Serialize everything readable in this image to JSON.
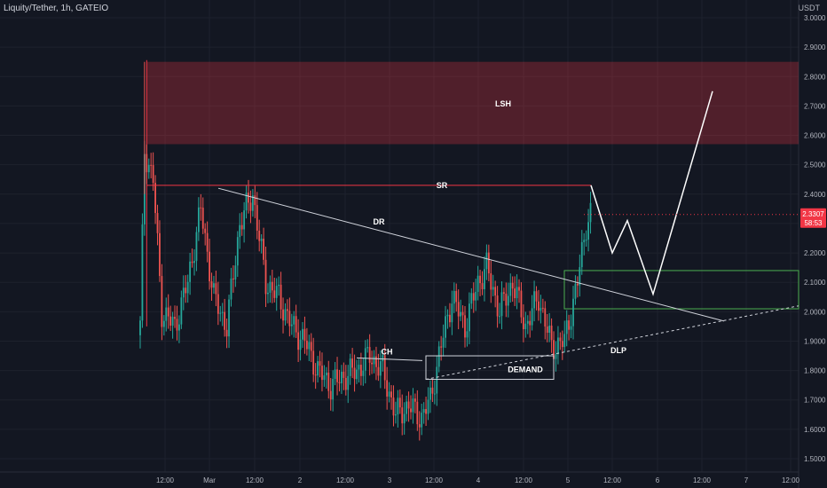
{
  "header": {
    "title": "Liquity/Tether, 1h, GATEIO"
  },
  "chart_data": {
    "type": "candlestick",
    "title": "Liquity/Tether, 1h, GATEIO",
    "ylabel": "USDT",
    "ylim": [
      1.45,
      3.05
    ],
    "y_ticks": [
      "3.0000",
      "2.9000",
      "2.8000",
      "2.7000",
      "2.6000",
      "2.5000",
      "2.4000",
      "2.3000",
      "2.2000",
      "2.1000",
      "2.0000",
      "1.9000",
      "1.8000",
      "1.7000",
      "1.6000",
      "1.5000"
    ],
    "x_ticks": [
      "12:00",
      "Mar",
      "12:00",
      "2",
      "12:00",
      "3",
      "12:00",
      "4",
      "12:00",
      "5",
      "12:00",
      "6",
      "12:00",
      "7",
      "12:00"
    ],
    "last_price": {
      "value": "2.3307",
      "timer": "58:53",
      "color": "#f23645"
    },
    "colors": {
      "up": "#26a69a",
      "down": "#ef5350",
      "background": "#131722",
      "grid": "#1e222d"
    },
    "ohlc_anchors": [
      {
        "t": 0,
        "p": 1.95
      },
      {
        "t": 2,
        "p": 2.55
      },
      {
        "t": 6,
        "p": 2.45
      },
      {
        "t": 10,
        "p": 2.0
      },
      {
        "t": 16,
        "p": 1.95
      },
      {
        "t": 22,
        "p": 2.1
      },
      {
        "t": 28,
        "p": 2.35
      },
      {
        "t": 34,
        "p": 2.05
      },
      {
        "t": 40,
        "p": 1.95
      },
      {
        "t": 46,
        "p": 2.3
      },
      {
        "t": 52,
        "p": 2.4
      },
      {
        "t": 58,
        "p": 2.1
      },
      {
        "t": 64,
        "p": 2.05
      },
      {
        "t": 70,
        "p": 1.95
      },
      {
        "t": 76,
        "p": 1.9
      },
      {
        "t": 82,
        "p": 1.8
      },
      {
        "t": 88,
        "p": 1.75
      },
      {
        "t": 94,
        "p": 1.78
      },
      {
        "t": 100,
        "p": 1.8
      },
      {
        "t": 106,
        "p": 1.85
      },
      {
        "t": 112,
        "p": 1.8
      },
      {
        "t": 118,
        "p": 1.65
      },
      {
        "t": 124,
        "p": 1.68
      },
      {
        "t": 130,
        "p": 1.64
      },
      {
        "t": 134,
        "p": 1.7
      },
      {
        "t": 138,
        "p": 1.85
      },
      {
        "t": 144,
        "p": 2.05
      },
      {
        "t": 150,
        "p": 1.95
      },
      {
        "t": 156,
        "p": 2.1
      },
      {
        "t": 160,
        "p": 2.15
      },
      {
        "t": 166,
        "p": 2.0
      },
      {
        "t": 172,
        "p": 2.1
      },
      {
        "t": 178,
        "p": 1.95
      },
      {
        "t": 184,
        "p": 2.05
      },
      {
        "t": 190,
        "p": 1.88
      },
      {
        "t": 196,
        "p": 1.9
      },
      {
        "t": 202,
        "p": 2.1
      },
      {
        "t": 206,
        "p": 2.3
      },
      {
        "t": 208,
        "p": 2.33
      }
    ],
    "annotations": [
      {
        "label": "LSH",
        "kind": "zone",
        "x_start": "Feb 29 08:00",
        "x_end": "right edge",
        "y_low": 2.57,
        "y_high": 2.85,
        "color": "#f23645"
      },
      {
        "label": "SR",
        "kind": "hline",
        "y": 2.43,
        "x_start": "Feb 29 08:00",
        "x_end": "Mar 5 12:00",
        "color": "#f23645"
      },
      {
        "label": "DR",
        "kind": "trendline",
        "from_y": 2.42,
        "to_y": 1.95,
        "color": "#d1d4dc"
      },
      {
        "label": "CH",
        "kind": "hline",
        "y": 1.84,
        "color": "#d1d4dc"
      },
      {
        "label": "DEMAND",
        "kind": "box",
        "y_low": 1.77,
        "y_high": 1.85,
        "color": "#d1d4dc"
      },
      {
        "label": "DLP",
        "kind": "dashed-trendline",
        "from_y": 1.77,
        "to_y": 2.02,
        "color": "#d1d4dc"
      }
    ],
    "green_zone": {
      "y_low": 2.01,
      "y_high": 2.14,
      "color": "#4caf50"
    },
    "projection": [
      2.43,
      2.2,
      2.31,
      2.06,
      2.75
    ]
  }
}
